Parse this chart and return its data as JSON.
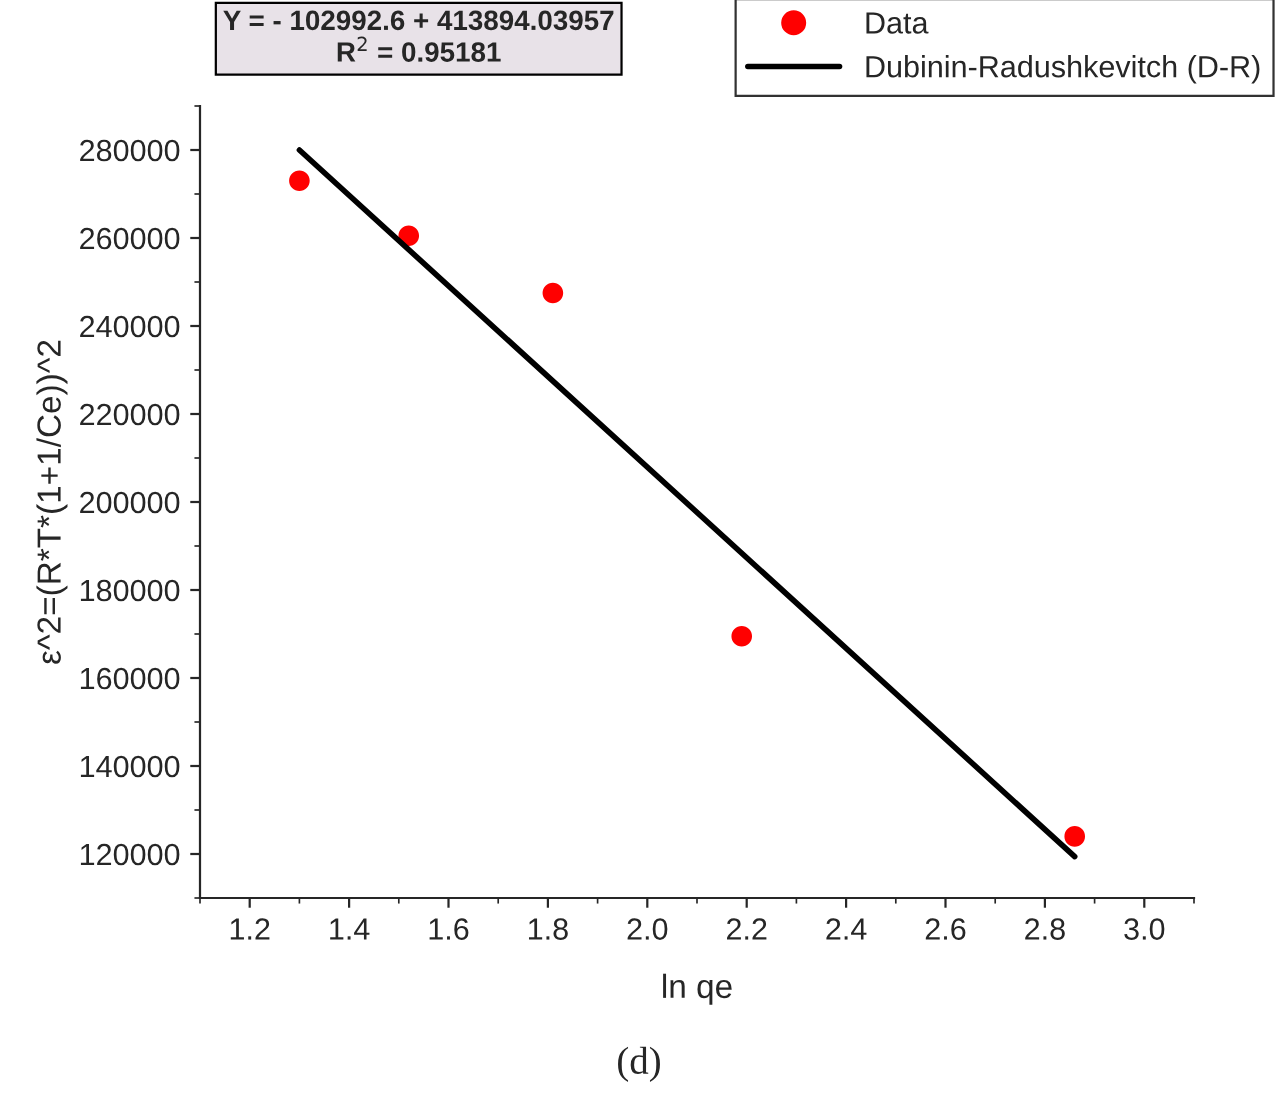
{
  "chart_data": {
    "type": "scatter",
    "xlabel": "ln qe",
    "ylabel": "ε^2=(R*T*(1+1/Ce))^2",
    "series": [
      {
        "name": "Data",
        "color": "#ff0000",
        "marker": "circle",
        "x": [
          1.3,
          1.52,
          1.81,
          2.19,
          2.86
        ],
        "values": [
          273000,
          260500,
          247500,
          169500,
          124000
        ]
      },
      {
        "name": "Dubinin-Radushkevitch (D-R)",
        "type": "line",
        "color": "#000000",
        "line_style": "solid",
        "x": [
          1.3,
          2.86
        ],
        "values": [
          280000,
          119400
        ]
      }
    ],
    "xlim": [
      1.1,
      3.1
    ],
    "xticks": [
      1.2,
      1.4,
      1.6,
      1.8,
      {
        "value": 2,
        "label": "2.0"
      },
      2.2,
      2.4,
      2.6,
      2.8,
      {
        "value": 3,
        "label": "3.0"
      }
    ],
    "ylim": [
      110000,
      290000
    ],
    "yticks": [
      120000,
      140000,
      160000,
      180000,
      200000,
      220000,
      240000,
      260000,
      280000
    ],
    "grid": false,
    "legend": "top right",
    "annotations": [
      "Y = - 102992.6 + 413894.03957\nR$^{2}$ = 0.95181",
      "(d)"
    ]
  }
}
